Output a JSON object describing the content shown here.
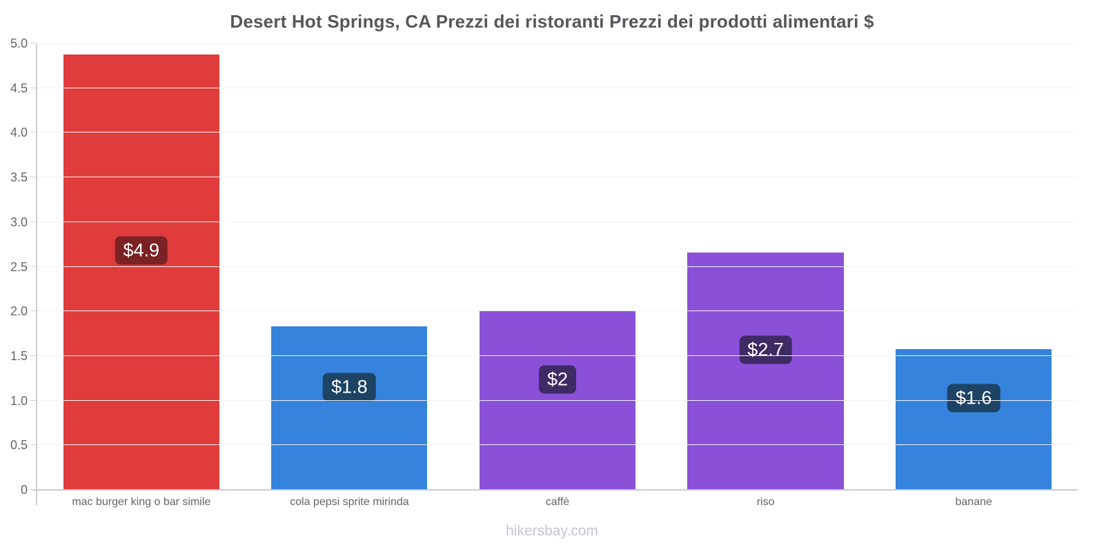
{
  "chart_data": {
    "type": "bar",
    "title": "Desert Hot Springs, CA Prezzi dei ristoranti Prezzi dei prodotti alimentari $",
    "currency": "$",
    "categories": [
      "mac burger king o bar simile",
      "cola pepsi sprite mirinda",
      "caffè",
      "riso",
      "banane"
    ],
    "values": [
      4.88,
      1.83,
      2.0,
      2.66,
      1.58
    ],
    "value_labels": [
      "$4.9",
      "$1.8",
      "$2",
      "$2.7",
      "$1.6"
    ],
    "bar_colors": [
      "#e03c3c",
      "#3583dc",
      "#8a50d8",
      "#8a50d8",
      "#3583dc"
    ],
    "label_bg_colors": [
      "#7b2224",
      "#1d4365",
      "#3e2a64",
      "#3e2a64",
      "#1d4365"
    ],
    "label_text_color": "#ffffff",
    "ylim": [
      0,
      5
    ],
    "ytick_step": 0.5,
    "ytick_labels": [
      "0",
      "0.5",
      "1.0",
      "1.5",
      "2.0",
      "2.5",
      "3.0",
      "3.5",
      "4.0",
      "4.5",
      "5.0"
    ],
    "xlabel": "",
    "ylabel": "",
    "legend": "none",
    "grid": "horizontal-faint"
  },
  "footer": {
    "text": "hikersbay.com"
  }
}
